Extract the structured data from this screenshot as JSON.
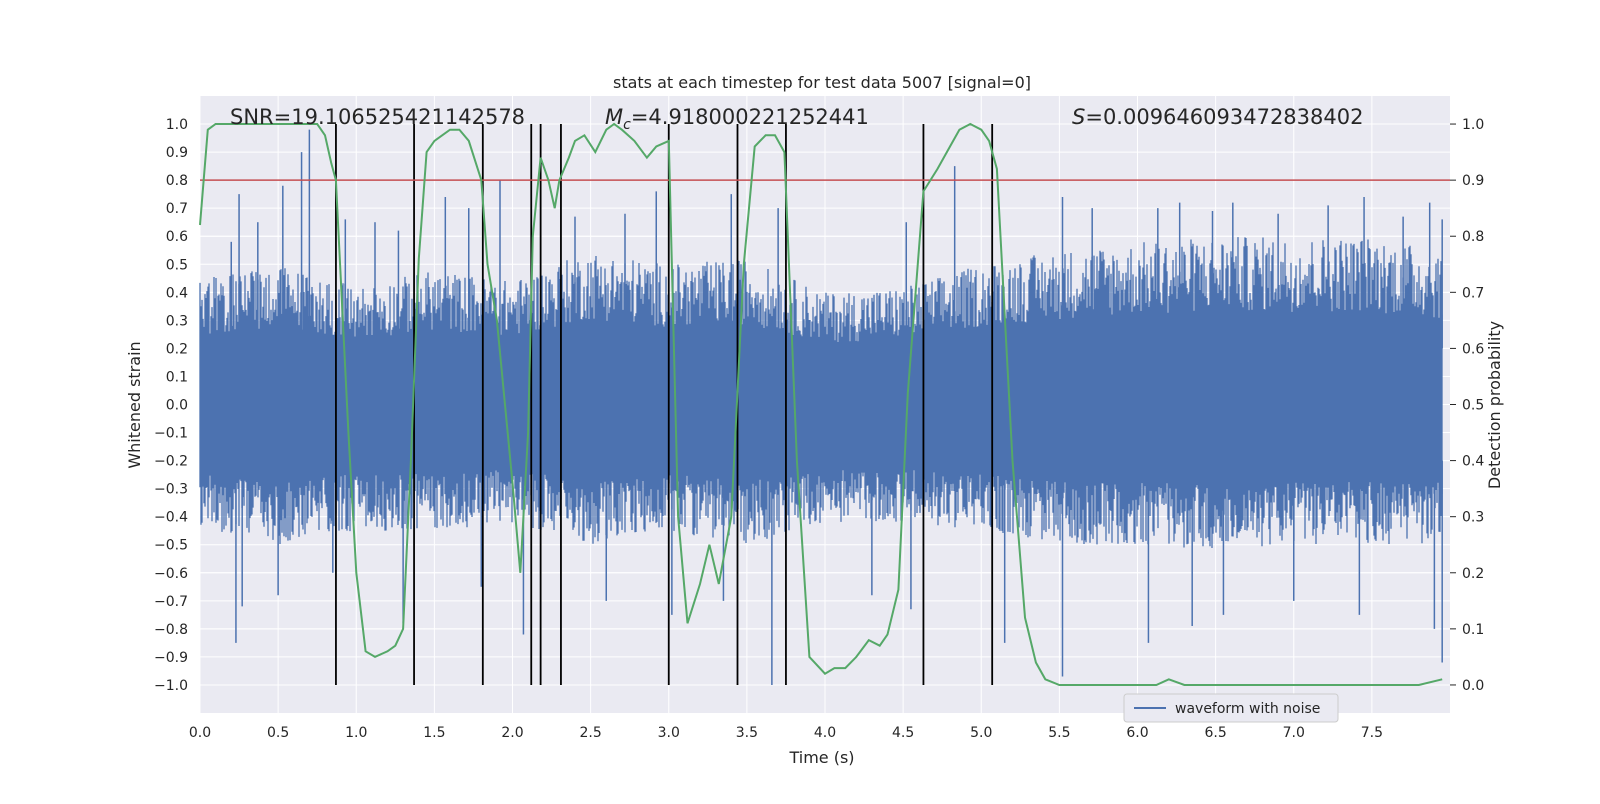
{
  "chart_data": {
    "type": "line",
    "title": "stats at each timestep for test data 5007 [signal=0]",
    "xlabel": "Time (s)",
    "ylabel": "Whitened strain",
    "y2label": "Detection probability",
    "xlim": [
      0.0,
      8.0
    ],
    "ylim": [
      -1.1,
      1.1
    ],
    "y2lim": [
      -0.05,
      1.05
    ],
    "xticks": [
      "0.0",
      "0.5",
      "1.0",
      "1.5",
      "2.0",
      "2.5",
      "3.0",
      "3.5",
      "4.0",
      "4.5",
      "5.0",
      "5.5",
      "6.0",
      "6.5",
      "7.0",
      "7.5"
    ],
    "yticks": [
      "1.0",
      "0.9",
      "0.8",
      "0.7",
      "0.6",
      "0.5",
      "0.4",
      "0.3",
      "0.2",
      "0.1",
      "0.0",
      "−0.1",
      "−0.2",
      "−0.3",
      "−0.4",
      "−0.5",
      "−0.6",
      "−0.7",
      "−0.8",
      "−0.9",
      "−1.0"
    ],
    "y2ticks": [
      "1.0",
      "0.9",
      "0.8",
      "0.7",
      "0.6",
      "0.5",
      "0.4",
      "0.3",
      "0.2",
      "0.1",
      "0.0"
    ],
    "annotations": {
      "snr": "SNR=19.106525421142578",
      "mc_symbol": "M",
      "mc_sub": "c",
      "mc_value": "=4.918000221252441",
      "s_symbol": "S",
      "s_value": "=0.009646093472838402"
    },
    "threshold": 0.9,
    "threshold_color": "#c44e52",
    "event_lines": [
      0.87,
      1.37,
      1.81,
      2.12,
      2.18,
      2.31,
      3.0,
      3.44,
      3.75,
      4.63,
      5.07
    ],
    "legend": {
      "label": "waveform with noise",
      "placement": "lower-right"
    },
    "series": [
      {
        "name": "waveform with noise",
        "color": "#4c72b0",
        "envelope_x": [
          0.0,
          0.5,
          1.0,
          1.5,
          2.0,
          2.5,
          3.0,
          3.5,
          4.0,
          4.5,
          5.0,
          5.5,
          6.0,
          6.5,
          7.0,
          7.5,
          7.95
        ],
        "envelope_upper": [
          0.45,
          0.5,
          0.42,
          0.48,
          0.44,
          0.55,
          0.5,
          0.52,
          0.4,
          0.42,
          0.5,
          0.55,
          0.58,
          0.6,
          0.6,
          0.6,
          0.55
        ],
        "envelope_lower": [
          -0.45,
          -0.5,
          -0.45,
          -0.45,
          -0.42,
          -0.5,
          -0.45,
          -0.5,
          -0.42,
          -0.42,
          -0.45,
          -0.5,
          -0.5,
          -0.52,
          -0.5,
          -0.5,
          -0.5
        ],
        "peaks_x": [
          0.2,
          0.25,
          0.37,
          0.53,
          0.65,
          0.7,
          0.93,
          1.12,
          1.27,
          1.57,
          1.72,
          1.92,
          2.4,
          2.72,
          2.92,
          3.4,
          3.7,
          4.52,
          4.83,
          5.52,
          5.71,
          6.13,
          6.27,
          6.48,
          6.61,
          6.9,
          7.22,
          7.45,
          7.7,
          7.87,
          7.95
        ],
        "peaks_y": [
          0.58,
          0.75,
          0.65,
          0.78,
          0.9,
          0.98,
          0.66,
          0.65,
          0.62,
          0.74,
          0.7,
          0.8,
          0.67,
          0.68,
          0.76,
          0.75,
          0.7,
          0.65,
          0.85,
          0.74,
          0.7,
          0.7,
          0.72,
          0.69,
          0.72,
          0.68,
          0.71,
          0.74,
          0.67,
          0.72,
          0.66
        ],
        "dips_x": [
          0.23,
          0.27,
          0.5,
          0.85,
          1.3,
          1.8,
          2.07,
          2.6,
          3.02,
          3.35,
          3.66,
          4.3,
          4.55,
          5.15,
          5.52,
          6.07,
          6.35,
          6.55,
          7.0,
          7.42,
          7.9,
          7.95
        ],
        "dips_y": [
          -0.85,
          -0.72,
          -0.68,
          -0.6,
          -0.78,
          -0.65,
          -0.82,
          -0.7,
          -0.75,
          -0.7,
          -1.0,
          -0.68,
          -0.73,
          -0.85,
          -0.97,
          -0.85,
          -0.79,
          -0.75,
          -0.7,
          -0.75,
          -0.8,
          -0.92
        ]
      },
      {
        "name": "detection probability",
        "color": "#55a868",
        "x": [
          0.0,
          0.05,
          0.1,
          0.2,
          0.3,
          0.4,
          0.5,
          0.6,
          0.7,
          0.75,
          0.8,
          0.84,
          0.87,
          0.95,
          1.0,
          1.06,
          1.12,
          1.2,
          1.25,
          1.3,
          1.35,
          1.4,
          1.45,
          1.5,
          1.55,
          1.6,
          1.66,
          1.72,
          1.8,
          1.84,
          1.9,
          2.0,
          2.05,
          2.1,
          2.13,
          2.18,
          2.23,
          2.27,
          2.3,
          2.36,
          2.4,
          2.46,
          2.53,
          2.6,
          2.65,
          2.7,
          2.78,
          2.86,
          2.92,
          3.0,
          3.06,
          3.12,
          3.2,
          3.26,
          3.32,
          3.4,
          3.48,
          3.55,
          3.62,
          3.68,
          3.74,
          3.82,
          3.9,
          4.0,
          4.06,
          4.13,
          4.2,
          4.28,
          4.35,
          4.4,
          4.47,
          4.53,
          4.63,
          4.72,
          4.8,
          4.86,
          4.93,
          5.0,
          5.05,
          5.1,
          5.2,
          5.28,
          5.35,
          5.41,
          5.5,
          6.0,
          6.12,
          6.2,
          6.3,
          6.5,
          7.0,
          7.5,
          7.8,
          7.95
        ],
        "y": [
          0.82,
          0.99,
          1.0,
          1.0,
          1.0,
          1.0,
          1.0,
          1.0,
          1.0,
          1.0,
          0.98,
          0.93,
          0.9,
          0.45,
          0.2,
          0.06,
          0.05,
          0.06,
          0.07,
          0.1,
          0.4,
          0.76,
          0.95,
          0.97,
          0.98,
          0.99,
          0.99,
          0.97,
          0.9,
          0.75,
          0.65,
          0.36,
          0.2,
          0.45,
          0.8,
          0.94,
          0.9,
          0.85,
          0.9,
          0.94,
          0.97,
          0.98,
          0.95,
          0.99,
          1.0,
          0.99,
          0.97,
          0.94,
          0.96,
          0.97,
          0.3,
          0.11,
          0.18,
          0.25,
          0.18,
          0.3,
          0.75,
          0.96,
          0.98,
          0.98,
          0.95,
          0.4,
          0.05,
          0.02,
          0.03,
          0.03,
          0.05,
          0.08,
          0.07,
          0.09,
          0.17,
          0.52,
          0.88,
          0.92,
          0.96,
          0.99,
          1.0,
          0.99,
          0.97,
          0.92,
          0.4,
          0.12,
          0.04,
          0.01,
          0.0,
          0.0,
          0.0,
          0.01,
          0.0,
          0.0,
          0.0,
          0.0,
          0.0,
          0.01
        ]
      }
    ]
  }
}
